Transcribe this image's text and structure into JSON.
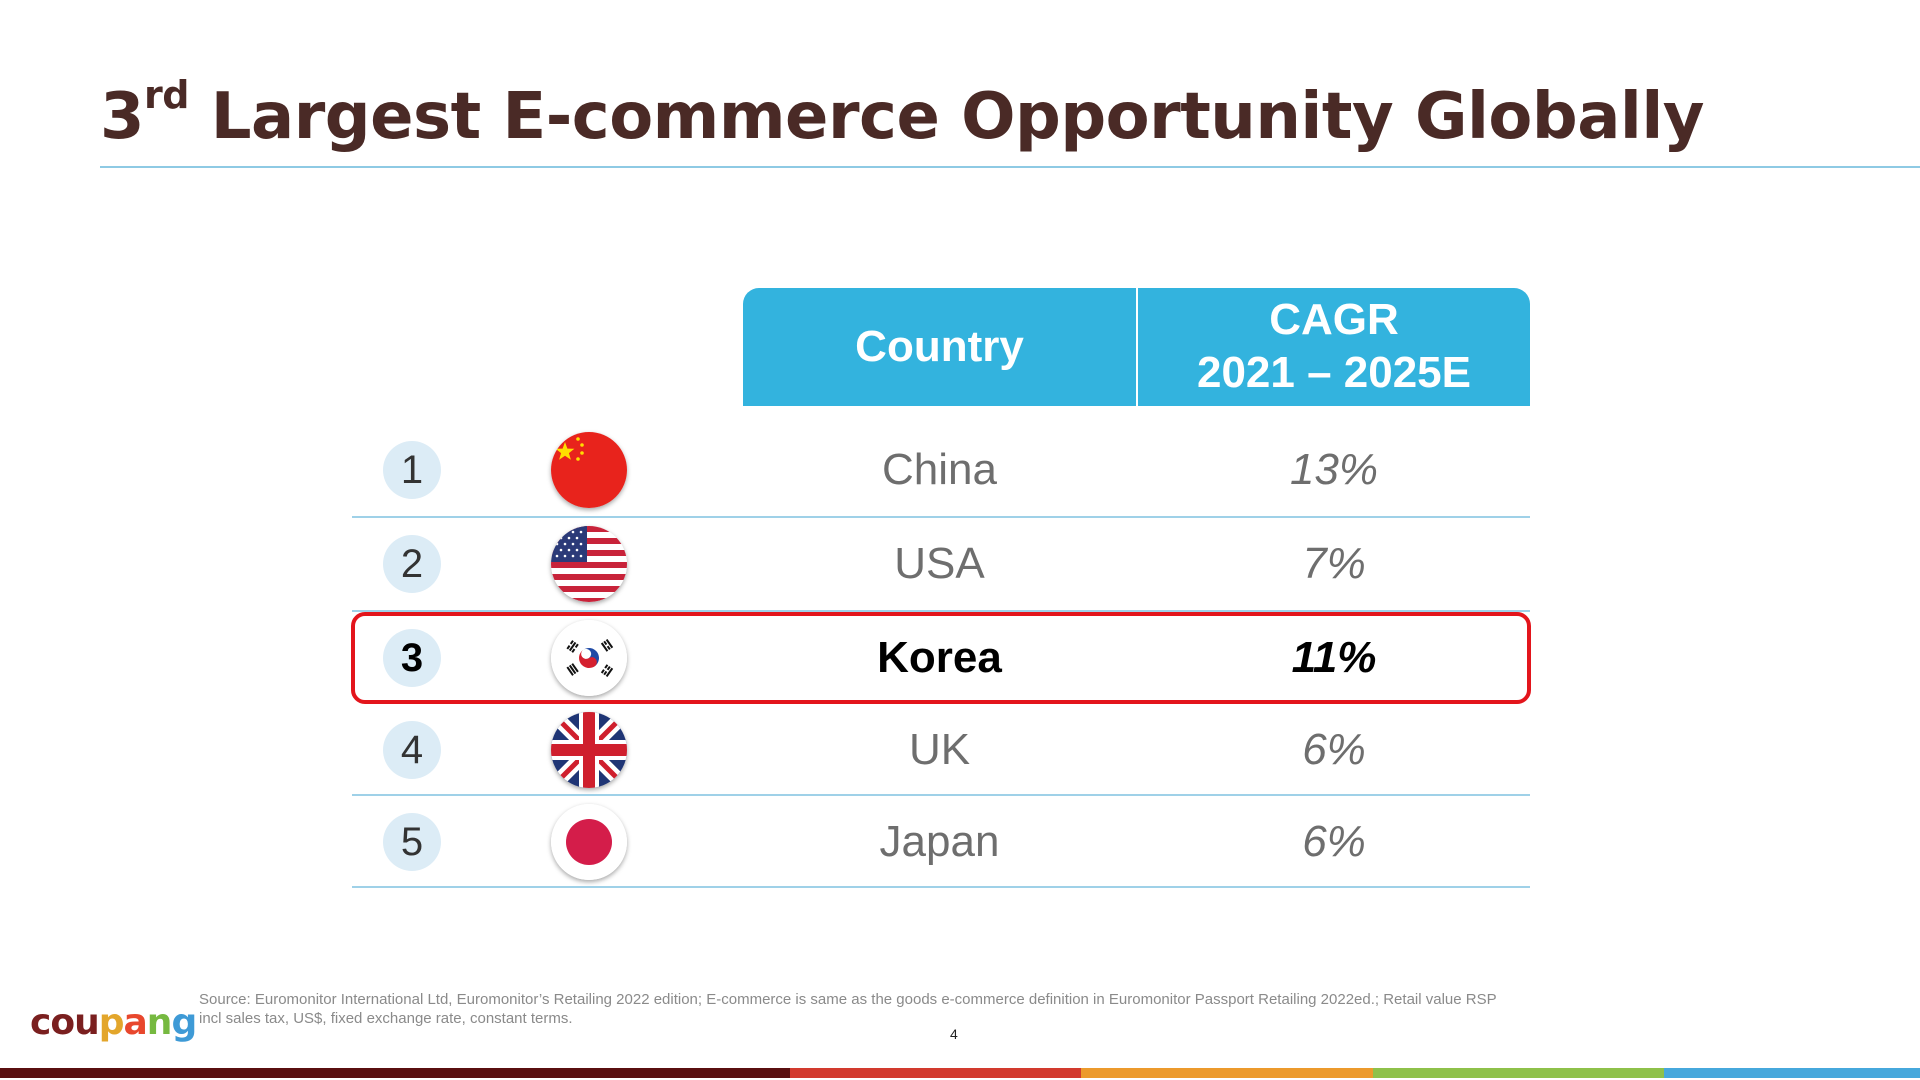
{
  "slide": {
    "title_prefix": "3",
    "title_sup": "rd",
    "title_rest": " Largest E-commerce Opportunity Globally"
  },
  "table": {
    "headers": {
      "country": "Country",
      "cagr_line1": "CAGR",
      "cagr_line2": "2021 – 2025E"
    },
    "rows": [
      {
        "rank": "1",
        "flag": "china-flag-icon",
        "country": "China",
        "cagr": "13%"
      },
      {
        "rank": "2",
        "flag": "usa-flag-icon",
        "country": "USA",
        "cagr": "7%"
      },
      {
        "rank": "3",
        "flag": "korea-flag-icon",
        "country": "Korea",
        "cagr": "11%",
        "highlighted": true
      },
      {
        "rank": "4",
        "flag": "uk-flag-icon",
        "country": "UK",
        "cagr": "6%"
      },
      {
        "rank": "5",
        "flag": "japan-flag-icon",
        "country": "Japan",
        "cagr": "6%"
      }
    ]
  },
  "footer": {
    "logo": {
      "letters": [
        "c",
        "o",
        "u",
        "p",
        "a",
        "n",
        "g"
      ],
      "colors": [
        "#7a1f1f",
        "#7a1f1f",
        "#7a1f1f",
        "#e3a62b",
        "#e8472d",
        "#76b940",
        "#3e9ad6"
      ]
    },
    "source": "Source: Euromonitor International Ltd, Euromonitor’s Retailing 2022 edition; E-commerce is same as the goods e-commerce definition in Euromonitor Passport Retailing 2022ed.; Retail value RSP incl sales tax, US$, fixed exchange rate, constant terms.",
    "page_number": "4"
  },
  "colors": {
    "title": "#4a2a26",
    "header_bg": "#33b3de",
    "highlight_border": "#e3151c",
    "bottom_bar": [
      "#5a0f10",
      "#d23a2e",
      "#ec9a2c",
      "#8ec14a",
      "#46a8dc"
    ]
  }
}
